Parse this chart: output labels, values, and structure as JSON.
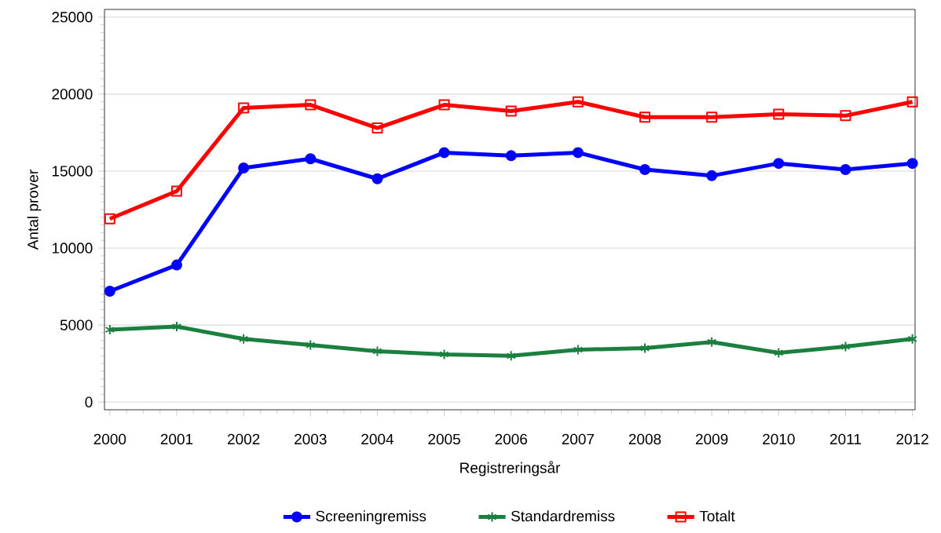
{
  "chart_data": {
    "type": "line",
    "xlabel": "Registreringsår",
    "ylabel": "Antal prover",
    "x": [
      2000,
      2001,
      2002,
      2003,
      2004,
      2005,
      2006,
      2007,
      2008,
      2009,
      2010,
      2011,
      2012
    ],
    "xlim": [
      1999.92,
      2012.04
    ],
    "ylim": [
      -500,
      25500
    ],
    "xticks": [
      2000,
      2001,
      2002,
      2003,
      2004,
      2005,
      2006,
      2007,
      2008,
      2009,
      2010,
      2011,
      2012
    ],
    "yticks": [
      0,
      5000,
      10000,
      15000,
      20000,
      25000
    ],
    "grid": "y",
    "legend": "bottom",
    "line_style": "solid",
    "series": [
      {
        "name": "Screeningremiss",
        "color": "#0000ff",
        "marker": "circle",
        "values": [
          7200,
          8900,
          15200,
          15800,
          14500,
          16200,
          16000,
          16200,
          15100,
          14700,
          15500,
          15100,
          15500
        ]
      },
      {
        "name": "Standardremiss",
        "color": "#1b7f3f",
        "marker": "cross",
        "values": [
          4700,
          4900,
          4100,
          3700,
          3300,
          3100,
          3000,
          3400,
          3500,
          3900,
          3200,
          3600,
          4100
        ]
      },
      {
        "name": "Totalt",
        "color": "#ff0000",
        "marker": "square",
        "values": [
          11900,
          13700,
          19100,
          19300,
          17800,
          19300,
          18900,
          19500,
          18500,
          18500,
          18700,
          18600,
          19500
        ]
      }
    ]
  }
}
